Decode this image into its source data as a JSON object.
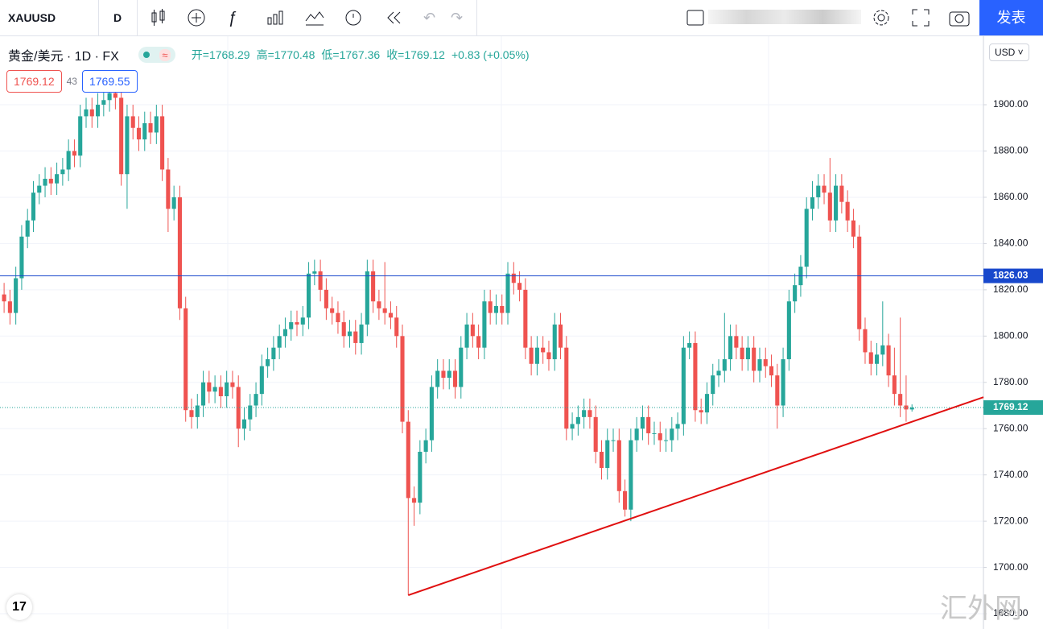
{
  "toolbar": {
    "symbol": "XAUUSD",
    "interval": "D",
    "publish": "发表"
  },
  "legend": {
    "name": "黄金/美元 · 1D · FX",
    "open": "开=1768.29",
    "high": "高=1770.48",
    "low": "低=1767.36",
    "close": "收=1769.12",
    "change": "+0.83 (+0.05%)",
    "sell": "1769.12",
    "spread": "43",
    "buy": "1769.55"
  },
  "currency": "USD",
  "watermark": "汇外网",
  "chart_data": {
    "type": "candlestick",
    "up_color": "#26a69a",
    "down_color": "#ef5350",
    "open": [
      1818,
      1815,
      1810,
      1825,
      1843,
      1850,
      1862,
      1865,
      1868,
      1866,
      1870,
      1872,
      1880,
      1878,
      1895,
      1898,
      1895,
      1900,
      1902,
      1905,
      1903,
      1870,
      1895,
      1890,
      1885,
      1892,
      1888,
      1895,
      1872,
      1855,
      1860,
      1812,
      1768,
      1765,
      1770,
      1780,
      1776,
      1778,
      1774,
      1780,
      1778,
      1760,
      1764,
      1770,
      1775,
      1787,
      1790,
      1795,
      1800,
      1803,
      1806,
      1805,
      1808,
      1827,
      1828,
      1820,
      1812,
      1810,
      1806,
      1800,
      1802,
      1797,
      1805,
      1828,
      1815,
      1812,
      1810,
      1808,
      1800,
      1763,
      1730,
      1728,
      1750,
      1755,
      1778,
      1785,
      1782,
      1785,
      1778,
      1795,
      1805,
      1800,
      1795,
      1815,
      1810,
      1813,
      1810,
      1827,
      1823,
      1820,
      1795,
      1788,
      1795,
      1793,
      1790,
      1805,
      1795,
      1760,
      1762,
      1765,
      1768,
      1765,
      1750,
      1743,
      1755,
      1755,
      1733,
      1725,
      1755,
      1760,
      1765,
      1758,
      1758,
      1755,
      1755,
      1760,
      1762,
      1795,
      1797,
      1768,
      1767,
      1775,
      1783,
      1785,
      1790,
      1800,
      1795,
      1790,
      1795,
      1785,
      1790,
      1787,
      1783,
      1770,
      1790,
      1815,
      1822,
      1830,
      1855,
      1860,
      1865,
      1862,
      1850,
      1865,
      1858,
      1850,
      1843,
      1803,
      1793,
      1788,
      1792,
      1796,
      1783,
      1775,
      1770,
      1768.29
    ],
    "high": [
      1823,
      1820,
      1830,
      1848,
      1855,
      1867,
      1870,
      1873,
      1873,
      1875,
      1877,
      1885,
      1885,
      1900,
      1903,
      1903,
      1905,
      1907,
      1910,
      1910,
      1908,
      1900,
      1900,
      1895,
      1897,
      1897,
      1900,
      1900,
      1877,
      1865,
      1865,
      1817,
      1773,
      1775,
      1785,
      1785,
      1783,
      1783,
      1785,
      1785,
      1783,
      1769,
      1775,
      1780,
      1792,
      1795,
      1800,
      1805,
      1808,
      1811,
      1811,
      1813,
      1832,
      1833,
      1833,
      1825,
      1817,
      1815,
      1811,
      1807,
      1807,
      1810,
      1833,
      1833,
      1820,
      1832,
      1815,
      1813,
      1805,
      1768,
      1735,
      1755,
      1760,
      1783,
      1790,
      1790,
      1790,
      1790,
      1800,
      1810,
      1810,
      1805,
      1820,
      1820,
      1818,
      1818,
      1832,
      1832,
      1828,
      1825,
      1800,
      1800,
      1800,
      1798,
      1810,
      1810,
      1800,
      1767,
      1770,
      1773,
      1773,
      1770,
      1755,
      1760,
      1760,
      1760,
      1738,
      1760,
      1765,
      1770,
      1770,
      1763,
      1763,
      1760,
      1765,
      1767,
      1800,
      1802,
      1802,
      1773,
      1780,
      1788,
      1790,
      1810,
      1805,
      1805,
      1800,
      1800,
      1800,
      1795,
      1795,
      1792,
      1788,
      1795,
      1820,
      1827,
      1835,
      1860,
      1867,
      1870,
      1870,
      1877,
      1870,
      1870,
      1863,
      1855,
      1848,
      1808,
      1798,
      1797,
      1815,
      1801,
      1795,
      1808,
      1783,
      1770.48
    ],
    "low": [
      1810,
      1805,
      1805,
      1820,
      1838,
      1845,
      1857,
      1860,
      1861,
      1861,
      1865,
      1867,
      1873,
      1873,
      1890,
      1890,
      1890,
      1895,
      1897,
      1898,
      1865,
      1855,
      1885,
      1880,
      1880,
      1883,
      1883,
      1867,
      1845,
      1850,
      1807,
      1763,
      1760,
      1760,
      1765,
      1771,
      1771,
      1769,
      1769,
      1773,
      1752,
      1755,
      1759,
      1765,
      1770,
      1782,
      1785,
      1790,
      1795,
      1798,
      1800,
      1800,
      1803,
      1822,
      1815,
      1807,
      1805,
      1801,
      1795,
      1795,
      1792,
      1792,
      1800,
      1810,
      1807,
      1805,
      1803,
      1795,
      1758,
      1688,
      1718,
      1723,
      1745,
      1750,
      1773,
      1777,
      1777,
      1773,
      1773,
      1790,
      1795,
      1790,
      1790,
      1805,
      1805,
      1805,
      1805,
      1818,
      1815,
      1790,
      1783,
      1783,
      1788,
      1785,
      1785,
      1790,
      1755,
      1755,
      1757,
      1760,
      1760,
      1745,
      1738,
      1738,
      1750,
      1728,
      1722,
      1720,
      1750,
      1755,
      1753,
      1753,
      1750,
      1750,
      1750,
      1755,
      1757,
      1790,
      1763,
      1762,
      1762,
      1770,
      1778,
      1780,
      1785,
      1790,
      1785,
      1785,
      1780,
      1780,
      1782,
      1778,
      1760,
      1765,
      1785,
      1810,
      1817,
      1825,
      1850,
      1855,
      1857,
      1845,
      1845,
      1853,
      1845,
      1838,
      1798,
      1788,
      1783,
      1783,
      1787,
      1778,
      1770,
      1765,
      1763,
      1767.36
    ],
    "close": [
      1815,
      1810,
      1825,
      1843,
      1850,
      1862,
      1865,
      1868,
      1866,
      1870,
      1872,
      1880,
      1878,
      1895,
      1898,
      1895,
      1900,
      1902,
      1905,
      1903,
      1870,
      1895,
      1890,
      1885,
      1892,
      1888,
      1895,
      1872,
      1855,
      1860,
      1812,
      1768,
      1765,
      1770,
      1780,
      1776,
      1778,
      1774,
      1780,
      1778,
      1760,
      1764,
      1770,
      1775,
      1787,
      1790,
      1795,
      1800,
      1803,
      1806,
      1805,
      1808,
      1827,
      1828,
      1820,
      1812,
      1810,
      1806,
      1800,
      1802,
      1797,
      1805,
      1828,
      1815,
      1812,
      1810,
      1808,
      1800,
      1763,
      1730,
      1728,
      1750,
      1755,
      1778,
      1785,
      1782,
      1785,
      1778,
      1795,
      1805,
      1800,
      1795,
      1815,
      1810,
      1813,
      1810,
      1827,
      1823,
      1820,
      1795,
      1788,
      1795,
      1793,
      1790,
      1805,
      1795,
      1760,
      1762,
      1765,
      1768,
      1765,
      1750,
      1743,
      1755,
      1755,
      1733,
      1725,
      1755,
      1760,
      1765,
      1758,
      1758,
      1755,
      1755,
      1760,
      1762,
      1795,
      1797,
      1768,
      1767,
      1775,
      1783,
      1785,
      1790,
      1800,
      1795,
      1790,
      1795,
      1785,
      1790,
      1787,
      1783,
      1770,
      1790,
      1815,
      1822,
      1830,
      1855,
      1860,
      1865,
      1862,
      1850,
      1865,
      1858,
      1850,
      1843,
      1803,
      1793,
      1788,
      1792,
      1796,
      1783,
      1775,
      1770,
      1768.29,
      1769.12
    ],
    "xlim": [
      -0.7,
      167.2
    ],
    "ylim": [
      1673.4,
      1929.6
    ],
    "yticks": [
      {
        "value": 1680,
        "label": "1680.00"
      },
      {
        "value": 1700,
        "label": "1700.00"
      },
      {
        "value": 1720,
        "label": "1720.00"
      },
      {
        "value": 1740,
        "label": "1740.00"
      },
      {
        "value": 1760,
        "label": "1760.00"
      },
      {
        "value": 1780,
        "label": "1780.00"
      },
      {
        "value": 1800,
        "label": "1800.00"
      },
      {
        "value": 1820,
        "label": "1820.00"
      },
      {
        "value": 1840,
        "label": "1840.00"
      },
      {
        "value": 1860,
        "label": "1860.00"
      },
      {
        "value": 1880,
        "label": "1880.00"
      },
      {
        "value": 1900,
        "label": "1900.00"
      }
    ],
    "hline": {
      "value": 1826.03,
      "label": "1826.03",
      "color": "#1848cc"
    },
    "last_price": {
      "value": 1769.12,
      "label": "1769.12",
      "color": "#26a69a"
    },
    "trendline": {
      "color": "#e01010",
      "x": [
        69,
        167.2
      ],
      "y": [
        1688,
        1773.6
      ]
    },
    "grid": true
  }
}
